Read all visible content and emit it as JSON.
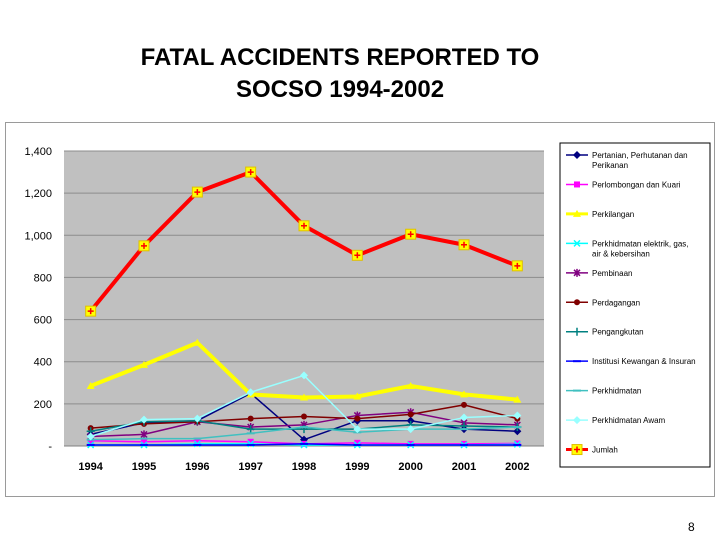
{
  "slide": {
    "title_line1": "FATAL ACCIDENTS REPORTED TO",
    "title_line2": "SOCSO 1994-2002",
    "page_number": "8"
  },
  "colors": {
    "plot_background": "#c0c0c0",
    "gridline": "#8c8c8c"
  },
  "chart_data": {
    "type": "line",
    "title": "FATAL ACCIDENTS REPORTED TO SOCSO 1994-2002",
    "categories": [
      "1994",
      "1995",
      "1996",
      "1997",
      "1998",
      "1999",
      "2000",
      "2001",
      "2002"
    ],
    "ylim": [
      0,
      1400
    ],
    "yticks": [
      0,
      200,
      400,
      600,
      800,
      1000,
      1200,
      1400
    ],
    "ytick_labels": [
      "-",
      "200",
      "400",
      "600",
      "800",
      "1,000",
      "1,200",
      "1,400"
    ],
    "grid": true,
    "legend_position": "right",
    "series": [
      {
        "name": "Pertanian, Perhutanan dan Perikanan",
        "color": "#000080",
        "marker": "diamond",
        "width": 1.5,
        "values": [
          55,
          110,
          120,
          250,
          30,
          120,
          120,
          80,
          70
        ]
      },
      {
        "name": "Perlombongan dan Kuari",
        "color": "#ff00ff",
        "marker": "square",
        "width": 1.5,
        "values": [
          25,
          20,
          25,
          20,
          10,
          15,
          10,
          10,
          12
        ]
      },
      {
        "name": "Perkilangan",
        "color": "#ffff00",
        "marker": "triangle",
        "width": 4,
        "values": [
          285,
          385,
          490,
          245,
          230,
          235,
          285,
          245,
          220
        ]
      },
      {
        "name": "Perkhidmatan elektrik, gas, air & kebersihan",
        "color": "#00ffff",
        "marker": "x",
        "width": 1.5,
        "values": [
          5,
          5,
          10,
          10,
          5,
          5,
          5,
          5,
          8
        ]
      },
      {
        "name": "Pembinaan",
        "color": "#800080",
        "marker": "star",
        "width": 1.5,
        "values": [
          45,
          55,
          115,
          90,
          100,
          145,
          160,
          110,
          100
        ]
      },
      {
        "name": "Perdagangan",
        "color": "#800000",
        "marker": "circle",
        "width": 1.5,
        "values": [
          85,
          105,
          115,
          130,
          140,
          130,
          150,
          195,
          130
        ]
      },
      {
        "name": "Pengangkutan",
        "color": "#008080",
        "marker": "plus",
        "width": 1.5,
        "values": [
          70,
          115,
          120,
          80,
          80,
          80,
          100,
          95,
          90
        ]
      },
      {
        "name": "Institusi Kewangan & Insuran",
        "color": "#0000ff",
        "marker": "dash",
        "width": 1.5,
        "values": [
          5,
          5,
          5,
          5,
          10,
          5,
          5,
          5,
          5
        ]
      },
      {
        "name": "Perkhidmatan",
        "color": "#40c0c0",
        "marker": "dash",
        "width": 1.5,
        "values": [
          30,
          35,
          35,
          60,
          90,
          65,
          80,
          80,
          90
        ]
      },
      {
        "name": "Perkhidmatan Awam",
        "color": "#99ffff",
        "marker": "diamond",
        "width": 1.5,
        "values": [
          45,
          125,
          130,
          255,
          335,
          80,
          80,
          135,
          145
        ]
      },
      {
        "name": "Jumlah",
        "color": "#ff0000",
        "marker": "plus-box",
        "width": 4,
        "values": [
          640,
          950,
          1205,
          1300,
          1045,
          905,
          1005,
          955,
          855
        ]
      }
    ]
  }
}
